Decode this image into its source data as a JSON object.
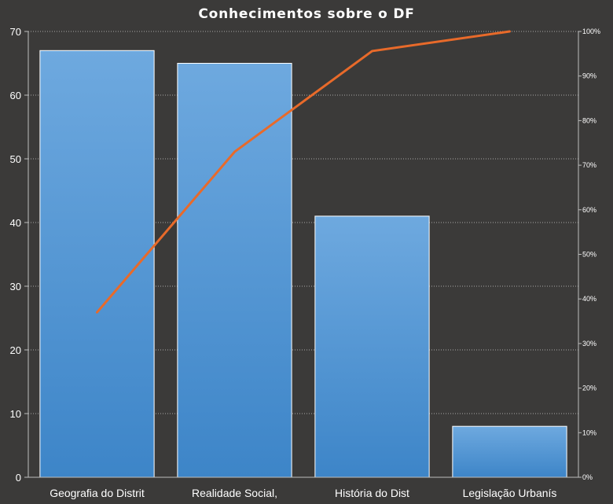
{
  "chart_data": {
    "type": "bar",
    "title": "Conhecimentos sobre o DF",
    "categories": [
      "Geografia do Distrit",
      "Realidade Social,",
      "História do Dist",
      "Legislação Urbanís"
    ],
    "values": [
      67,
      65,
      41,
      8
    ],
    "ylim": [
      0,
      70
    ],
    "yticks": [
      0,
      10,
      20,
      30,
      40,
      50,
      60,
      70
    ],
    "secondary_axis": {
      "ticks": [
        "0%",
        "10%",
        "20%",
        "30%",
        "40%",
        "50%",
        "60%",
        "70%",
        "80%",
        "90%",
        "100%"
      ],
      "range": [
        0,
        100
      ]
    },
    "series": [
      {
        "type": "bar",
        "values": [
          67,
          65,
          41,
          8
        ],
        "color": "#5b9bd5"
      },
      {
        "type": "line",
        "axis": "secondary",
        "values": [
          37,
          73,
          95.6,
          100
        ],
        "color": "#e86a2a"
      }
    ],
    "grid": true,
    "legend": "none"
  }
}
